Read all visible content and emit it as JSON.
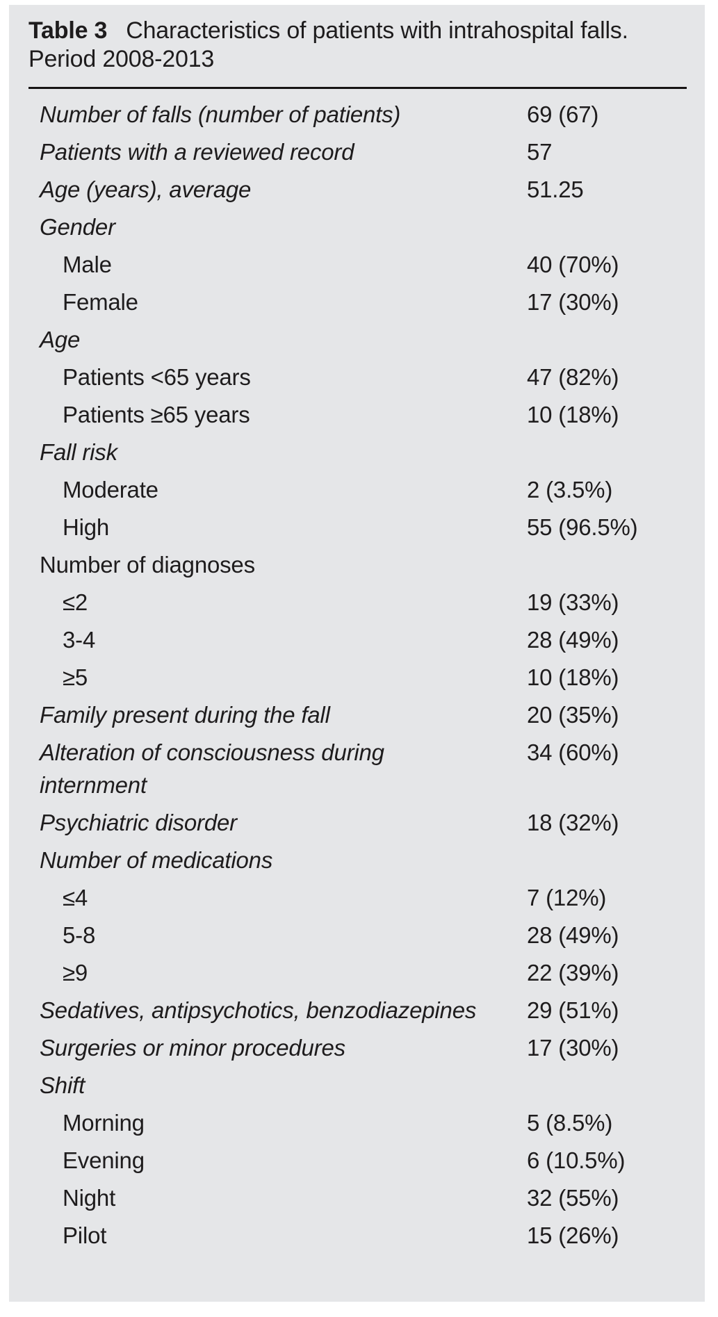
{
  "table": {
    "label": "Table 3",
    "caption": "Characteristics of patients with intrahospital falls.",
    "caption_line2": "Period 2008-2013",
    "colors": {
      "panel_background": "#e5e6e8",
      "text": "#1e1c1d",
      "rule": "#161414",
      "page_background": "#ffffff"
    },
    "rows": [
      {
        "label": "Number of falls (number of patients)",
        "value": "69 (67)",
        "italic": true,
        "indent": 0
      },
      {
        "label": "Patients with a reviewed record",
        "value": "57",
        "italic": true,
        "indent": 0
      },
      {
        "label": "Age (years), average",
        "value": "51.25",
        "italic": true,
        "indent": 0
      },
      {
        "label": "Gender",
        "value": "",
        "italic": true,
        "indent": 0
      },
      {
        "label": "Male",
        "value": "40 (70%)",
        "italic": false,
        "indent": 1
      },
      {
        "label": "Female",
        "value": "17 (30%)",
        "italic": false,
        "indent": 1
      },
      {
        "label": "Age",
        "value": "",
        "italic": true,
        "indent": 0
      },
      {
        "label": "Patients <65 years",
        "value": "47 (82%)",
        "italic": false,
        "indent": 1
      },
      {
        "label": "Patients ≥65 years",
        "value": "10 (18%)",
        "italic": false,
        "indent": 1
      },
      {
        "label": "Fall risk",
        "value": "",
        "italic": true,
        "indent": 0
      },
      {
        "label": "Moderate",
        "value": "2 (3.5%)",
        "italic": false,
        "indent": 1
      },
      {
        "label": "High",
        "value": "55 (96.5%)",
        "italic": false,
        "indent": 1
      },
      {
        "label": "Number of diagnoses",
        "value": "",
        "italic": false,
        "indent": 0
      },
      {
        "label": "≤2",
        "value": "19 (33%)",
        "italic": false,
        "indent": 1
      },
      {
        "label": "3-4",
        "value": "28 (49%)",
        "italic": false,
        "indent": 1
      },
      {
        "label": "≥5",
        "value": "10 (18%)",
        "italic": false,
        "indent": 1
      },
      {
        "label": "Family present during the fall",
        "value": "20 (35%)",
        "italic": true,
        "indent": 0
      },
      {
        "label": "Alteration of consciousness during internment",
        "value": "34 (60%)",
        "italic": true,
        "indent": 0
      },
      {
        "label": "Psychiatric disorder",
        "value": "18 (32%)",
        "italic": true,
        "indent": 0
      },
      {
        "label": "Number of medications",
        "value": "",
        "italic": true,
        "indent": 0
      },
      {
        "label": "≤4",
        "value": "7 (12%)",
        "italic": false,
        "indent": 1
      },
      {
        "label": "5-8",
        "value": "28 (49%)",
        "italic": false,
        "indent": 1
      },
      {
        "label": "≥9",
        "value": "22 (39%)",
        "italic": false,
        "indent": 1
      },
      {
        "label": "Sedatives, antipsychotics, benzodiazepines",
        "value": "29 (51%)",
        "italic": true,
        "indent": 0
      },
      {
        "label": "Surgeries or minor procedures",
        "value": "17 (30%)",
        "italic": true,
        "indent": 0
      },
      {
        "label": "Shift",
        "value": "",
        "italic": true,
        "indent": 0
      },
      {
        "label": "Morning",
        "value": "5 (8.5%)",
        "italic": false,
        "indent": 1
      },
      {
        "label": "Evening",
        "value": "6 (10.5%)",
        "italic": false,
        "indent": 1
      },
      {
        "label": "Night",
        "value": "32 (55%)",
        "italic": false,
        "indent": 1
      },
      {
        "label": "Pilot",
        "value": "15 (26%)",
        "italic": false,
        "indent": 1
      }
    ]
  }
}
